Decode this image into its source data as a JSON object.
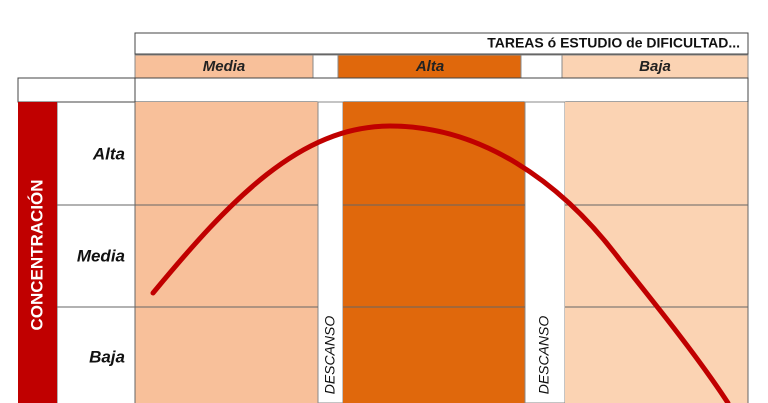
{
  "header": {
    "title": "TAREAS ó ESTUDIO de DIFICULTAD..."
  },
  "columns": [
    "Media",
    "Alta",
    "Baja"
  ],
  "side_label": "CONCENTRACIÓN",
  "rows": [
    "Alta",
    "Media",
    "Baja"
  ],
  "rest_labels": [
    "DESCANSO",
    "DESCANSO"
  ]
}
